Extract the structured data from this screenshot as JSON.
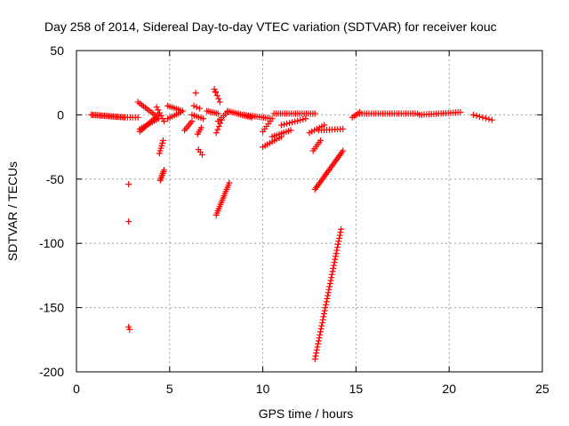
{
  "chart_data": {
    "type": "scatter",
    "title": "Day 258 of 2014, Sidereal Day-to-day VTEC variation (SDTVAR) for receiver kouc",
    "xlabel": "GPS time / hours",
    "ylabel": "SDTVAR / TECUs",
    "xlim": [
      0,
      25
    ],
    "ylim": [
      -200,
      50
    ],
    "xticks": [
      0,
      5,
      10,
      15,
      20,
      25
    ],
    "yticks": [
      50,
      0,
      -50,
      -100,
      -150,
      -200
    ],
    "grid": true,
    "marker": "plus",
    "color": "#ff0000",
    "segments": [
      {
        "x0": 0.8,
        "x1": 2.6,
        "y0": 0,
        "y1": -2,
        "n": 24
      },
      {
        "x0": 2.6,
        "x1": 3.3,
        "y0": -2,
        "y1": -2,
        "n": 6
      },
      {
        "x0": 3.3,
        "x1": 4.2,
        "y0": 10,
        "y1": 0,
        "n": 10
      },
      {
        "x0": 3.4,
        "x1": 4.4,
        "y0": -13,
        "y1": 0,
        "n": 12
      },
      {
        "x0": 3.4,
        "x1": 4.4,
        "y0": -11,
        "y1": -3,
        "n": 10
      },
      {
        "x0": 4.3,
        "x1": 4.7,
        "y0": 6,
        "y1": -5,
        "n": 6
      },
      {
        "x0": 4.5,
        "x1": 4.7,
        "y0": -51,
        "y1": -43,
        "n": 7
      },
      {
        "x0": 4.45,
        "x1": 4.65,
        "y0": -30,
        "y1": -20,
        "n": 6
      },
      {
        "x0": 4.9,
        "x1": 5.7,
        "y0": 7,
        "y1": 3,
        "n": 8
      },
      {
        "x0": 4.9,
        "x1": 5.6,
        "y0": -3,
        "y1": 2,
        "n": 7
      },
      {
        "x0": 5.8,
        "x1": 6.2,
        "y0": -12,
        "y1": -5,
        "n": 6
      },
      {
        "x0": 6.2,
        "x1": 6.8,
        "y0": 0,
        "y1": -3,
        "n": 6
      },
      {
        "x0": 6.3,
        "x1": 6.6,
        "y0": 7,
        "y1": 5,
        "n": 3
      },
      {
        "x0": 6.5,
        "x1": 6.7,
        "y0": -15,
        "y1": -10,
        "n": 4
      },
      {
        "x0": 6.55,
        "x1": 6.75,
        "y0": -27,
        "y1": -31,
        "n": 3
      },
      {
        "x0": 7.0,
        "x1": 7.6,
        "y0": 3,
        "y1": 1,
        "n": 7
      },
      {
        "x0": 7.6,
        "x1": 8.1,
        "y0": -5,
        "y1": 2,
        "n": 6
      },
      {
        "x0": 7.4,
        "x1": 7.7,
        "y0": 20,
        "y1": 10,
        "n": 5
      },
      {
        "x0": 7.5,
        "x1": 7.8,
        "y0": -14,
        "y1": -4,
        "n": 5
      },
      {
        "x0": 7.5,
        "x1": 8.2,
        "y0": -78,
        "y1": -53,
        "n": 16
      },
      {
        "x0": 8.1,
        "x1": 9.4,
        "y0": 3,
        "y1": -2,
        "n": 14
      },
      {
        "x0": 9.0,
        "x1": 10.5,
        "y0": 0,
        "y1": -3,
        "n": 14
      },
      {
        "x0": 10.0,
        "x1": 10.4,
        "y0": -13,
        "y1": -5,
        "n": 5
      },
      {
        "x0": 10.0,
        "x1": 11.0,
        "y0": -25,
        "y1": -17,
        "n": 9
      },
      {
        "x0": 10.5,
        "x1": 11.5,
        "y0": -17,
        "y1": -12,
        "n": 9
      },
      {
        "x0": 11.0,
        "x1": 12.3,
        "y0": -8,
        "y1": -3,
        "n": 10
      },
      {
        "x0": 10.6,
        "x1": 12.8,
        "y0": 1,
        "y1": 1,
        "n": 20
      },
      {
        "x0": 12.5,
        "x1": 13.3,
        "y0": -14,
        "y1": -8,
        "n": 7
      },
      {
        "x0": 12.7,
        "x1": 13.1,
        "y0": -28,
        "y1": -20,
        "n": 6
      },
      {
        "x0": 12.8,
        "x1": 14.3,
        "y0": -58,
        "y1": -28,
        "n": 24
      },
      {
        "x0": 13.0,
        "x1": 14.3,
        "y0": -12,
        "y1": -11,
        "n": 10
      },
      {
        "x0": 12.8,
        "x1": 14.2,
        "y0": -190,
        "y1": -89,
        "n": 44
      },
      {
        "x0": 14.8,
        "x1": 15.2,
        "y0": -2,
        "y1": 2,
        "n": 5
      },
      {
        "x0": 15.2,
        "x1": 18.3,
        "y0": 1,
        "y1": 1,
        "n": 26
      },
      {
        "x0": 18.4,
        "x1": 20.6,
        "y0": 0,
        "y1": 2,
        "n": 18
      },
      {
        "x0": 21.3,
        "x1": 22.3,
        "y0": 0,
        "y1": -4,
        "n": 7
      }
    ],
    "isolated": [
      [
        2.8,
        -54
      ],
      [
        2.8,
        -83
      ],
      [
        2.8,
        -165
      ],
      [
        2.85,
        -167
      ],
      [
        6.4,
        17
      ],
      [
        7.45,
        18
      ]
    ]
  }
}
